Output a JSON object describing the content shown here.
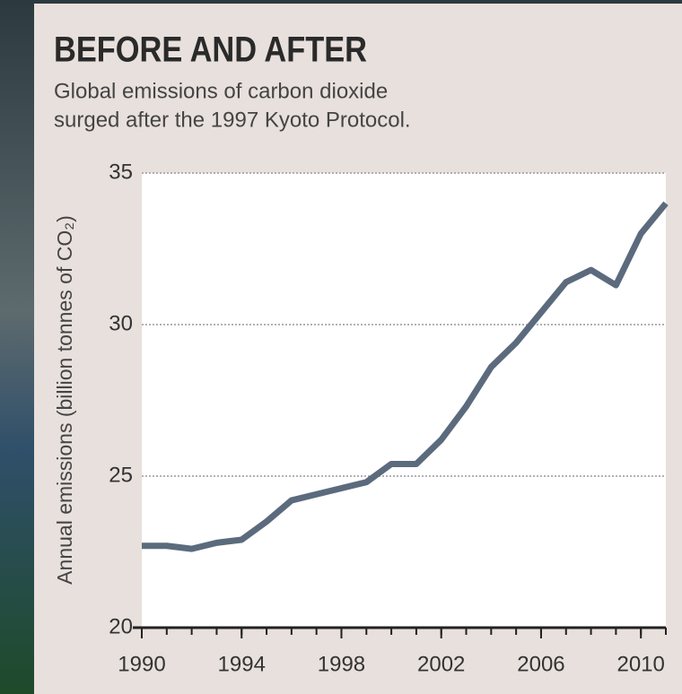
{
  "chart_data": {
    "type": "line",
    "title": "BEFORE AND AFTER",
    "subtitle": [
      "Global emissions of carbon dioxide",
      "surged after the 1997 Kyoto Protocol."
    ],
    "y_label": "Annual emissions (billion tonnes of CO₂)",
    "x": [
      1990,
      1991,
      1992,
      1993,
      1994,
      1995,
      1996,
      1997,
      1998,
      1999,
      2000,
      2001,
      2002,
      2003,
      2004,
      2005,
      2006,
      2007,
      2008,
      2009,
      2010,
      2011
    ],
    "series": [
      {
        "color": "#5b6b7d",
        "values": [
          22.7,
          22.7,
          22.6,
          22.8,
          22.9,
          23.5,
          24.2,
          24.4,
          24.6,
          24.8,
          25.4,
          25.4,
          26.2,
          27.3,
          28.6,
          29.4,
          30.4,
          31.4,
          31.8,
          31.3,
          33.0,
          34.0
        ]
      }
    ],
    "xlim": [
      1990,
      2011
    ],
    "xticks": [
      1990,
      1994,
      1998,
      2002,
      2006,
      2010
    ],
    "ylim": [
      20,
      35
    ],
    "yticks": [
      20,
      25,
      30,
      35
    ],
    "grid": true
  }
}
